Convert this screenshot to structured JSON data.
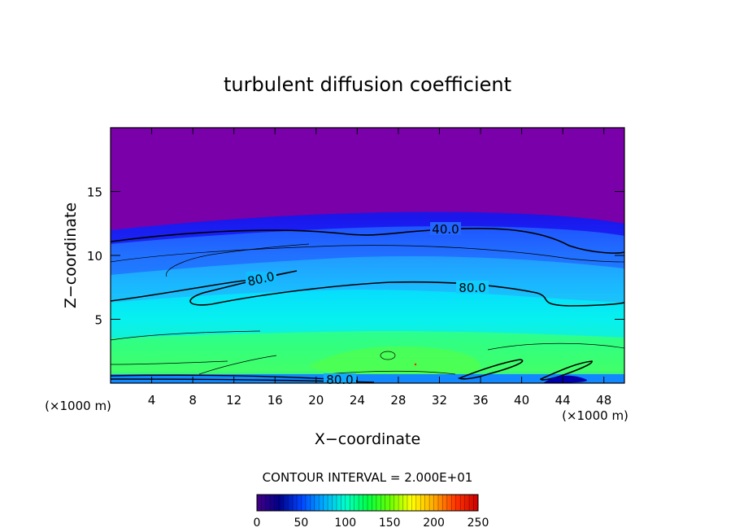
{
  "chart_data": {
    "type": "contour",
    "title": "turbulent diffusion coefficient",
    "xlabel": "X−coordinate",
    "ylabel": "Z−coordinate",
    "x_unit_left": "(×1000 m)",
    "x_unit_right": "(×1000 m)",
    "xlim": [
      0,
      50
    ],
    "ylim": [
      0,
      20
    ],
    "x_ticks": [
      "4",
      "8",
      "12",
      "16",
      "20",
      "24",
      "28",
      "32",
      "36",
      "40",
      "44",
      "48"
    ],
    "y_ticks": [
      "5",
      "10",
      "15"
    ],
    "contour_interval_text": "CONTOUR INTERVAL = 2.000E+01",
    "contour_labels": [
      {
        "text": "40.0",
        "x": 32,
        "z": 12
      },
      {
        "text": "80.0",
        "x": 14.5,
        "z": 8.3
      },
      {
        "text": "80.0",
        "x": 35,
        "z": 7.5
      },
      {
        "text": "80.0",
        "x": 22.5,
        "z": 0.3
      }
    ],
    "colorbar": {
      "min": 0,
      "max": 250,
      "tick_labels": [
        "0",
        "50",
        "100",
        "150",
        "200",
        "250"
      ],
      "colors": [
        "#440088",
        "#000088",
        "#0044ff",
        "#00aaff",
        "#00ffcc",
        "#00ff44",
        "#66ff00",
        "#ffff00",
        "#ffaa00",
        "#ff3300",
        "#cc0000"
      ]
    },
    "colors": {
      "top_layer": "#7700aa",
      "dark_blue": "#1a1aff",
      "mid_blue": "#2277ff",
      "light_blue": "#22aaff",
      "cyan": "#00e5ff",
      "green_cyan": "#11ffbb",
      "green": "#33ff66"
    }
  }
}
